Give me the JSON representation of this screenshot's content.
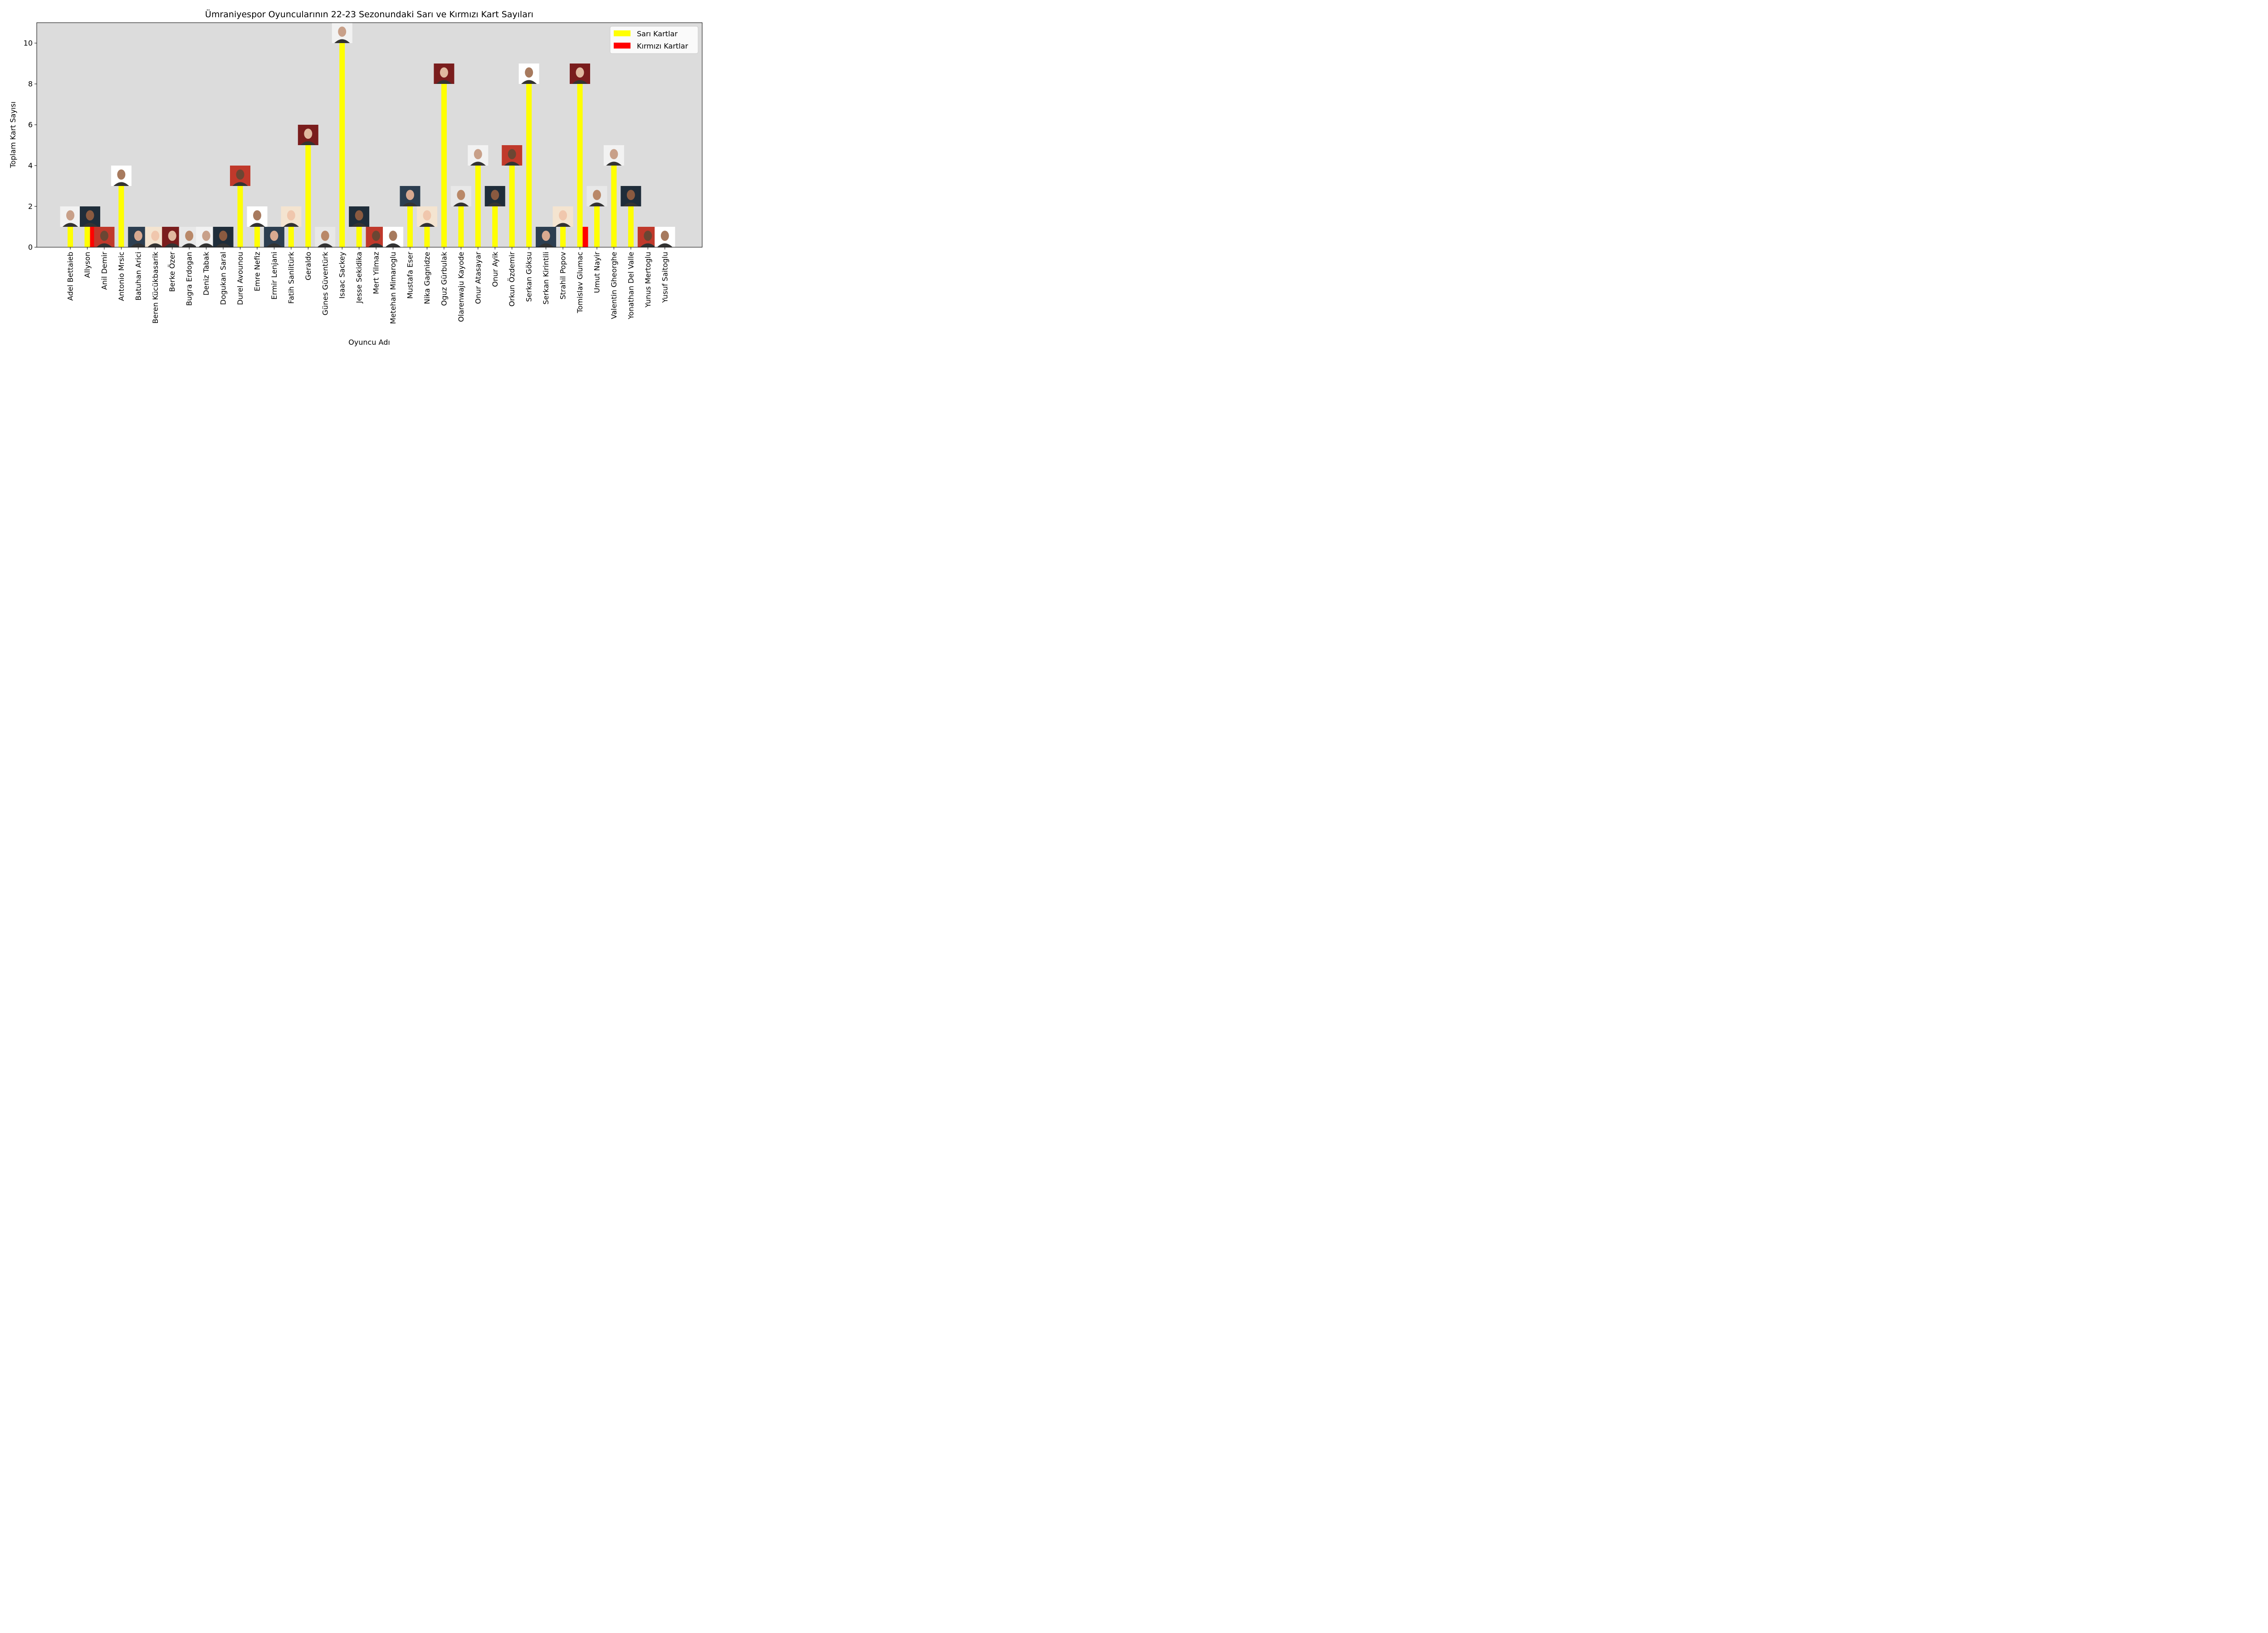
{
  "chart_data": {
    "type": "bar",
    "title": "Ümraniyespor Oyuncularının 22-23 Sezonundaki Sarı ve Kırmızı Kart Sayıları",
    "xlabel": "Oyuncu Adı",
    "ylabel": "Toplam Kart Sayısı",
    "ylim": [
      0,
      11
    ],
    "yticks": [
      0,
      2,
      4,
      6,
      8,
      10
    ],
    "grid": false,
    "legend_position": "top-right",
    "categories": [
      "Adel Bettaieb",
      "Allyson",
      "Anil Demir",
      "Antonio Mrsic",
      "Batuhan Arici",
      "Beren Kücükbasarik",
      "Berke Özer",
      "Bugra Erdogan",
      "Deniz Tabak",
      "Dogukan Saral",
      "Durel Avounou",
      "Emre Nefiz",
      "Ermir Lenjani",
      "Fatih Sanlitürk",
      "Geraldo",
      "Günes Güventürk",
      "Isaac Sackey",
      "Jesse Sekidika",
      "Mert Yilmaz",
      "Metehan Mimaroglu",
      "Mustafa Eser",
      "Nika Gagnidze",
      "Oguz Gürbulak",
      "Olarenwaju Kayode",
      "Onur Atasayar",
      "Onur Ayik",
      "Orkun Özdemir",
      "Serkan Göksu",
      "Serkan Kirintili",
      "Strahil Popov",
      "Tomislav Glumac",
      "Umut Nayir",
      "Valentin Gheorghe",
      "Yonathan Del Valle",
      "Yunus Mertoglu",
      "Yusuf Saitoglu"
    ],
    "series": [
      {
        "name": "Sarı Kartlar",
        "color": "#ffff00",
        "values": [
          1,
          1,
          0,
          3,
          0,
          0,
          0,
          0,
          0,
          0,
          3,
          1,
          0,
          1,
          5,
          0,
          10,
          1,
          0,
          0,
          2,
          1,
          8,
          2,
          4,
          2,
          4,
          8,
          0,
          1,
          8,
          2,
          4,
          2,
          0,
          0
        ]
      },
      {
        "name": "Kırmızı Kartlar",
        "color": "#ff0000",
        "values": [
          0,
          1,
          0,
          0,
          0,
          0,
          0,
          0,
          0,
          0,
          0,
          0,
          0,
          0,
          0,
          0,
          0,
          0,
          0,
          0,
          0,
          0,
          0,
          0,
          0,
          0,
          0,
          0,
          0,
          0,
          1,
          0,
          0,
          0,
          0,
          0
        ]
      }
    ],
    "plot_background": "#dcdcdc"
  }
}
